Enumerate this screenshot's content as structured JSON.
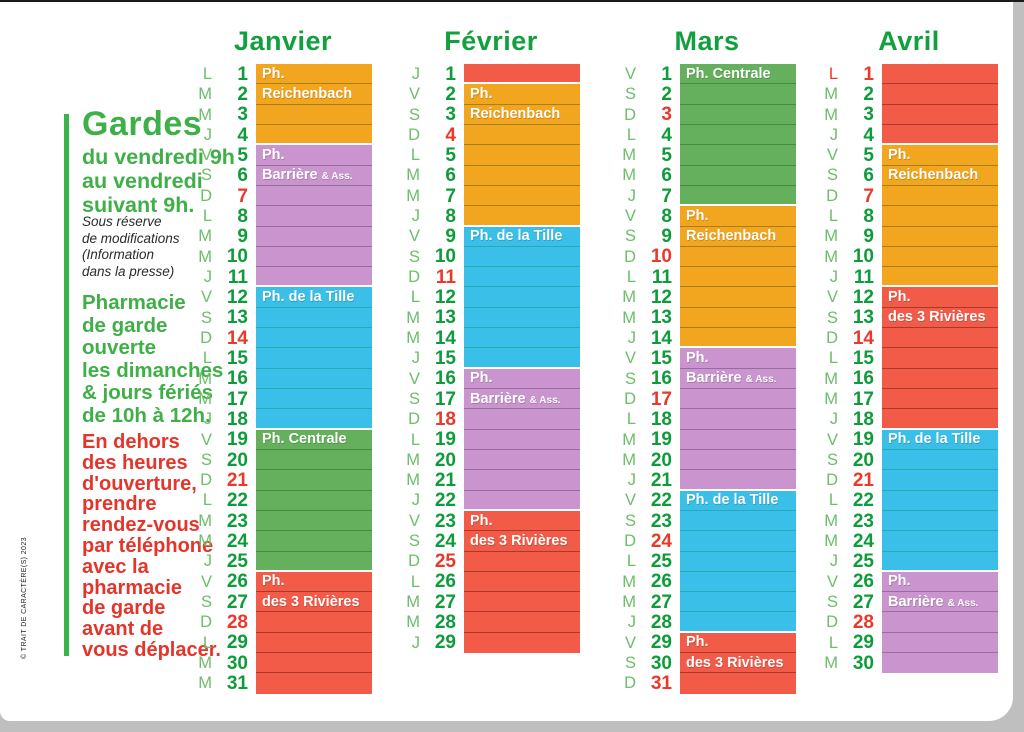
{
  "sidebar": {
    "title": "Gardes",
    "subtitle": "du vendredi 9h\nau vendredi\nsuivant 9h.",
    "note": "Sous réserve\nde modifications\n(Information\ndans la presse)",
    "opening": "Pharmacie\nde garde\nouverte\nles dimanches\n& jours fériés\nde 10h à 12h.",
    "warning": "En dehors\ndes heures\nd'ouverture,\nprendre\nrendez-vous\npar téléphone\navec la\npharmacie\nde garde\navant de\nvous déplacer.",
    "copyright": "© TRAIT DE CARACTÈRE(S) 2023"
  },
  "legend_colors": {
    "weekday_letter": "#6CBE69",
    "weekday_number": "#0E9C3B",
    "sunday_holiday": "#E8392A",
    "month_title": "#12A03E"
  },
  "pharmacies": {
    "reichenbach": {
      "name": "Ph. Reichenbach",
      "color": "#F2A51F",
      "line": "#77660F"
    },
    "barriere": {
      "name": "Ph. Barrière & Ass.",
      "color": "#CA95CE",
      "line": "#71517B"
    },
    "tille": {
      "name": "Ph. de la Tille",
      "color": "#39BFE8",
      "line": "#1F9B8F"
    },
    "centrale": {
      "name": "Ph. Centrale",
      "color": "#65B05C",
      "line": "#2F7434"
    },
    "rivieres": {
      "name": "Ph. des 3 Rivières",
      "color": "#F15B48",
      "line": "#7F2116"
    }
  },
  "months": [
    {
      "name": "Janvier",
      "days": [
        {
          "d": 1,
          "w": "L",
          "p": "reichenbach",
          "t": "Ph."
        },
        {
          "d": 2,
          "w": "M",
          "p": "reichenbach",
          "t": "Reichenbach"
        },
        {
          "d": 3,
          "w": "M",
          "p": "reichenbach"
        },
        {
          "d": 4,
          "w": "J",
          "p": "reichenbach"
        },
        {
          "d": 5,
          "w": "V",
          "p": "barriere",
          "t": "Ph."
        },
        {
          "d": 6,
          "w": "S",
          "p": "barriere",
          "t": "Barrière & Ass."
        },
        {
          "d": 7,
          "w": "D",
          "p": "barriere",
          "r": 1
        },
        {
          "d": 8,
          "w": "L",
          "p": "barriere"
        },
        {
          "d": 9,
          "w": "M",
          "p": "barriere"
        },
        {
          "d": 10,
          "w": "M",
          "p": "barriere"
        },
        {
          "d": 11,
          "w": "J",
          "p": "barriere"
        },
        {
          "d": 12,
          "w": "V",
          "p": "tille",
          "t": "Ph. de la Tille"
        },
        {
          "d": 13,
          "w": "S",
          "p": "tille"
        },
        {
          "d": 14,
          "w": "D",
          "p": "tille",
          "r": 1
        },
        {
          "d": 15,
          "w": "L",
          "p": "tille"
        },
        {
          "d": 16,
          "w": "M",
          "p": "tille"
        },
        {
          "d": 17,
          "w": "M",
          "p": "tille"
        },
        {
          "d": 18,
          "w": "J",
          "p": "tille"
        },
        {
          "d": 19,
          "w": "V",
          "p": "centrale",
          "t": "Ph. Centrale"
        },
        {
          "d": 20,
          "w": "S",
          "p": "centrale"
        },
        {
          "d": 21,
          "w": "D",
          "p": "centrale",
          "r": 1
        },
        {
          "d": 22,
          "w": "L",
          "p": "centrale"
        },
        {
          "d": 23,
          "w": "M",
          "p": "centrale"
        },
        {
          "d": 24,
          "w": "M",
          "p": "centrale"
        },
        {
          "d": 25,
          "w": "J",
          "p": "centrale"
        },
        {
          "d": 26,
          "w": "V",
          "p": "rivieres",
          "t": "Ph."
        },
        {
          "d": 27,
          "w": "S",
          "p": "rivieres",
          "t": "des 3 Rivières"
        },
        {
          "d": 28,
          "w": "D",
          "p": "rivieres",
          "r": 1
        },
        {
          "d": 29,
          "w": "L",
          "p": "rivieres"
        },
        {
          "d": 30,
          "w": "M",
          "p": "rivieres"
        },
        {
          "d": 31,
          "w": "M",
          "p": "rivieres"
        }
      ]
    },
    {
      "name": "Février",
      "days": [
        {
          "d": 1,
          "w": "J",
          "p": "rivieres"
        },
        {
          "d": 2,
          "w": "V",
          "p": "reichenbach",
          "t": "Ph."
        },
        {
          "d": 3,
          "w": "S",
          "p": "reichenbach",
          "t": "Reichenbach"
        },
        {
          "d": 4,
          "w": "D",
          "p": "reichenbach",
          "r": 1
        },
        {
          "d": 5,
          "w": "L",
          "p": "reichenbach"
        },
        {
          "d": 6,
          "w": "M",
          "p": "reichenbach"
        },
        {
          "d": 7,
          "w": "M",
          "p": "reichenbach"
        },
        {
          "d": 8,
          "w": "J",
          "p": "reichenbach"
        },
        {
          "d": 9,
          "w": "V",
          "p": "tille",
          "t": "Ph. de la Tille"
        },
        {
          "d": 10,
          "w": "S",
          "p": "tille"
        },
        {
          "d": 11,
          "w": "D",
          "p": "tille",
          "r": 1
        },
        {
          "d": 12,
          "w": "L",
          "p": "tille"
        },
        {
          "d": 13,
          "w": "M",
          "p": "tille"
        },
        {
          "d": 14,
          "w": "M",
          "p": "tille"
        },
        {
          "d": 15,
          "w": "J",
          "p": "tille"
        },
        {
          "d": 16,
          "w": "V",
          "p": "barriere",
          "t": "Ph."
        },
        {
          "d": 17,
          "w": "S",
          "p": "barriere",
          "t": "Barrière & Ass."
        },
        {
          "d": 18,
          "w": "D",
          "p": "barriere",
          "r": 1
        },
        {
          "d": 19,
          "w": "L",
          "p": "barriere"
        },
        {
          "d": 20,
          "w": "M",
          "p": "barriere"
        },
        {
          "d": 21,
          "w": "M",
          "p": "barriere"
        },
        {
          "d": 22,
          "w": "J",
          "p": "barriere"
        },
        {
          "d": 23,
          "w": "V",
          "p": "rivieres",
          "t": "Ph."
        },
        {
          "d": 24,
          "w": "S",
          "p": "rivieres",
          "t": "des 3 Rivières"
        },
        {
          "d": 25,
          "w": "D",
          "p": "rivieres",
          "r": 1
        },
        {
          "d": 26,
          "w": "L",
          "p": "rivieres"
        },
        {
          "d": 27,
          "w": "M",
          "p": "rivieres"
        },
        {
          "d": 28,
          "w": "M",
          "p": "rivieres"
        },
        {
          "d": 29,
          "w": "J",
          "p": "rivieres"
        }
      ]
    },
    {
      "name": "Mars",
      "days": [
        {
          "d": 1,
          "w": "V",
          "p": "centrale",
          "t": "Ph. Centrale"
        },
        {
          "d": 2,
          "w": "S",
          "p": "centrale"
        },
        {
          "d": 3,
          "w": "D",
          "p": "centrale",
          "r": 1
        },
        {
          "d": 4,
          "w": "L",
          "p": "centrale"
        },
        {
          "d": 5,
          "w": "M",
          "p": "centrale"
        },
        {
          "d": 6,
          "w": "M",
          "p": "centrale"
        },
        {
          "d": 7,
          "w": "J",
          "p": "centrale"
        },
        {
          "d": 8,
          "w": "V",
          "p": "reichenbach",
          "t": "Ph."
        },
        {
          "d": 9,
          "w": "S",
          "p": "reichenbach",
          "t": "Reichenbach"
        },
        {
          "d": 10,
          "w": "D",
          "p": "reichenbach",
          "r": 1
        },
        {
          "d": 11,
          "w": "L",
          "p": "reichenbach"
        },
        {
          "d": 12,
          "w": "M",
          "p": "reichenbach"
        },
        {
          "d": 13,
          "w": "M",
          "p": "reichenbach"
        },
        {
          "d": 14,
          "w": "J",
          "p": "reichenbach"
        },
        {
          "d": 15,
          "w": "V",
          "p": "barriere",
          "t": "Ph."
        },
        {
          "d": 16,
          "w": "S",
          "p": "barriere",
          "t": "Barrière & Ass."
        },
        {
          "d": 17,
          "w": "D",
          "p": "barriere",
          "r": 1
        },
        {
          "d": 18,
          "w": "L",
          "p": "barriere"
        },
        {
          "d": 19,
          "w": "M",
          "p": "barriere"
        },
        {
          "d": 20,
          "w": "M",
          "p": "barriere"
        },
        {
          "d": 21,
          "w": "J",
          "p": "barriere"
        },
        {
          "d": 22,
          "w": "V",
          "p": "tille",
          "t": "Ph. de la Tille"
        },
        {
          "d": 23,
          "w": "S",
          "p": "tille"
        },
        {
          "d": 24,
          "w": "D",
          "p": "tille",
          "r": 1
        },
        {
          "d": 25,
          "w": "L",
          "p": "tille"
        },
        {
          "d": 26,
          "w": "M",
          "p": "tille"
        },
        {
          "d": 27,
          "w": "M",
          "p": "tille"
        },
        {
          "d": 28,
          "w": "J",
          "p": "tille"
        },
        {
          "d": 29,
          "w": "V",
          "p": "rivieres",
          "t": "Ph."
        },
        {
          "d": 30,
          "w": "S",
          "p": "rivieres",
          "t": "des 3 Rivières"
        },
        {
          "d": 31,
          "w": "D",
          "p": "rivieres",
          "r": 1
        }
      ]
    },
    {
      "name": "Avril",
      "days": [
        {
          "d": 1,
          "w": "L",
          "p": "rivieres",
          "r": 1,
          "rl": 1
        },
        {
          "d": 2,
          "w": "M",
          "p": "rivieres"
        },
        {
          "d": 3,
          "w": "M",
          "p": "rivieres"
        },
        {
          "d": 4,
          "w": "J",
          "p": "rivieres"
        },
        {
          "d": 5,
          "w": "V",
          "p": "reichenbach",
          "t": "Ph."
        },
        {
          "d": 6,
          "w": "S",
          "p": "reichenbach",
          "t": "Reichenbach"
        },
        {
          "d": 7,
          "w": "D",
          "p": "reichenbach",
          "r": 1
        },
        {
          "d": 8,
          "w": "L",
          "p": "reichenbach"
        },
        {
          "d": 9,
          "w": "M",
          "p": "reichenbach"
        },
        {
          "d": 10,
          "w": "M",
          "p": "reichenbach"
        },
        {
          "d": 11,
          "w": "J",
          "p": "reichenbach"
        },
        {
          "d": 12,
          "w": "V",
          "p": "rivieres",
          "t": "Ph."
        },
        {
          "d": 13,
          "w": "S",
          "p": "rivieres",
          "t": "des 3 Rivières"
        },
        {
          "d": 14,
          "w": "D",
          "p": "rivieres",
          "r": 1
        },
        {
          "d": 15,
          "w": "L",
          "p": "rivieres"
        },
        {
          "d": 16,
          "w": "M",
          "p": "rivieres"
        },
        {
          "d": 17,
          "w": "M",
          "p": "rivieres"
        },
        {
          "d": 18,
          "w": "J",
          "p": "rivieres"
        },
        {
          "d": 19,
          "w": "V",
          "p": "tille",
          "t": "Ph. de la Tille"
        },
        {
          "d": 20,
          "w": "S",
          "p": "tille"
        },
        {
          "d": 21,
          "w": "D",
          "p": "tille",
          "r": 1
        },
        {
          "d": 22,
          "w": "L",
          "p": "tille"
        },
        {
          "d": 23,
          "w": "M",
          "p": "tille"
        },
        {
          "d": 24,
          "w": "M",
          "p": "tille"
        },
        {
          "d": 25,
          "w": "J",
          "p": "tille"
        },
        {
          "d": 26,
          "w": "V",
          "p": "barriere",
          "t": "Ph."
        },
        {
          "d": 27,
          "w": "S",
          "p": "barriere",
          "t": "Barrière & Ass."
        },
        {
          "d": 28,
          "w": "D",
          "p": "barriere",
          "r": 1
        },
        {
          "d": 29,
          "w": "L",
          "p": "barriere"
        },
        {
          "d": 30,
          "w": "M",
          "p": "barriere"
        }
      ]
    }
  ]
}
